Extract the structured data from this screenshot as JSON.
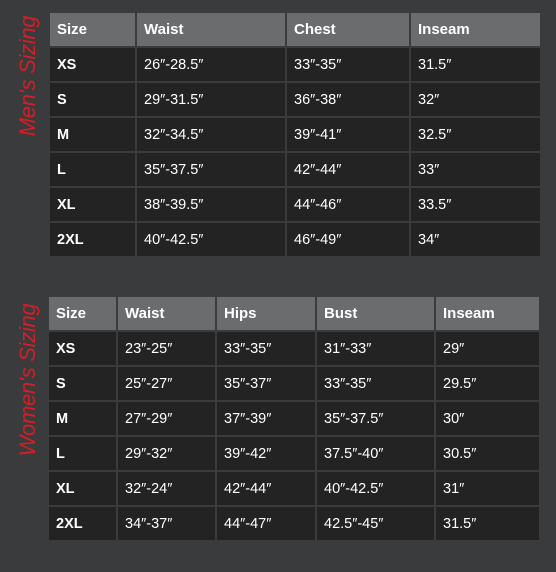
{
  "mens": {
    "label": "Men's Sizing",
    "headers": [
      "Size",
      "Waist",
      "Chest",
      "Inseam"
    ],
    "rows": [
      [
        "XS",
        "26″-28.5″",
        "33″-35″",
        "31.5″"
      ],
      [
        "S",
        "29″-31.5″",
        "36″-38″",
        "32″"
      ],
      [
        "M",
        "32″-34.5″",
        "39″-41″",
        "32.5″"
      ],
      [
        "L",
        "35″-37.5″",
        "42″-44″",
        "33″"
      ],
      [
        "XL",
        "38″-39.5″",
        "44″-46″",
        "33.5″"
      ],
      [
        "2XL",
        "40″-42.5″",
        "46″-49″",
        "34″"
      ]
    ]
  },
  "womens": {
    "label": "Women's Sizing",
    "headers": [
      "Size",
      "Waist",
      "Hips",
      "Bust",
      "Inseam"
    ],
    "rows": [
      [
        "XS",
        "23″-25″",
        "33″-35″",
        "31″-33″",
        "29″"
      ],
      [
        "S",
        "25″-27″",
        "35″-37″",
        "33″-35″",
        "29.5″"
      ],
      [
        "M",
        "27″-29″",
        "37″-39″",
        "35″-37.5″",
        "30″"
      ],
      [
        "L",
        "29″-32″",
        "39″-42″",
        "37.5″-40″",
        "30.5″"
      ],
      [
        "XL",
        "32″-24″",
        "42″-44″",
        "40″-42.5″",
        "31″"
      ],
      [
        "2XL",
        "34″-37″",
        "44″-47″",
        "42.5″-45″",
        "31.5″"
      ]
    ]
  },
  "colors": {
    "background": "#3a3b3d",
    "header_cell": "#6b6c6e",
    "body_cell": "#232323",
    "label_red": "#d21f26"
  }
}
